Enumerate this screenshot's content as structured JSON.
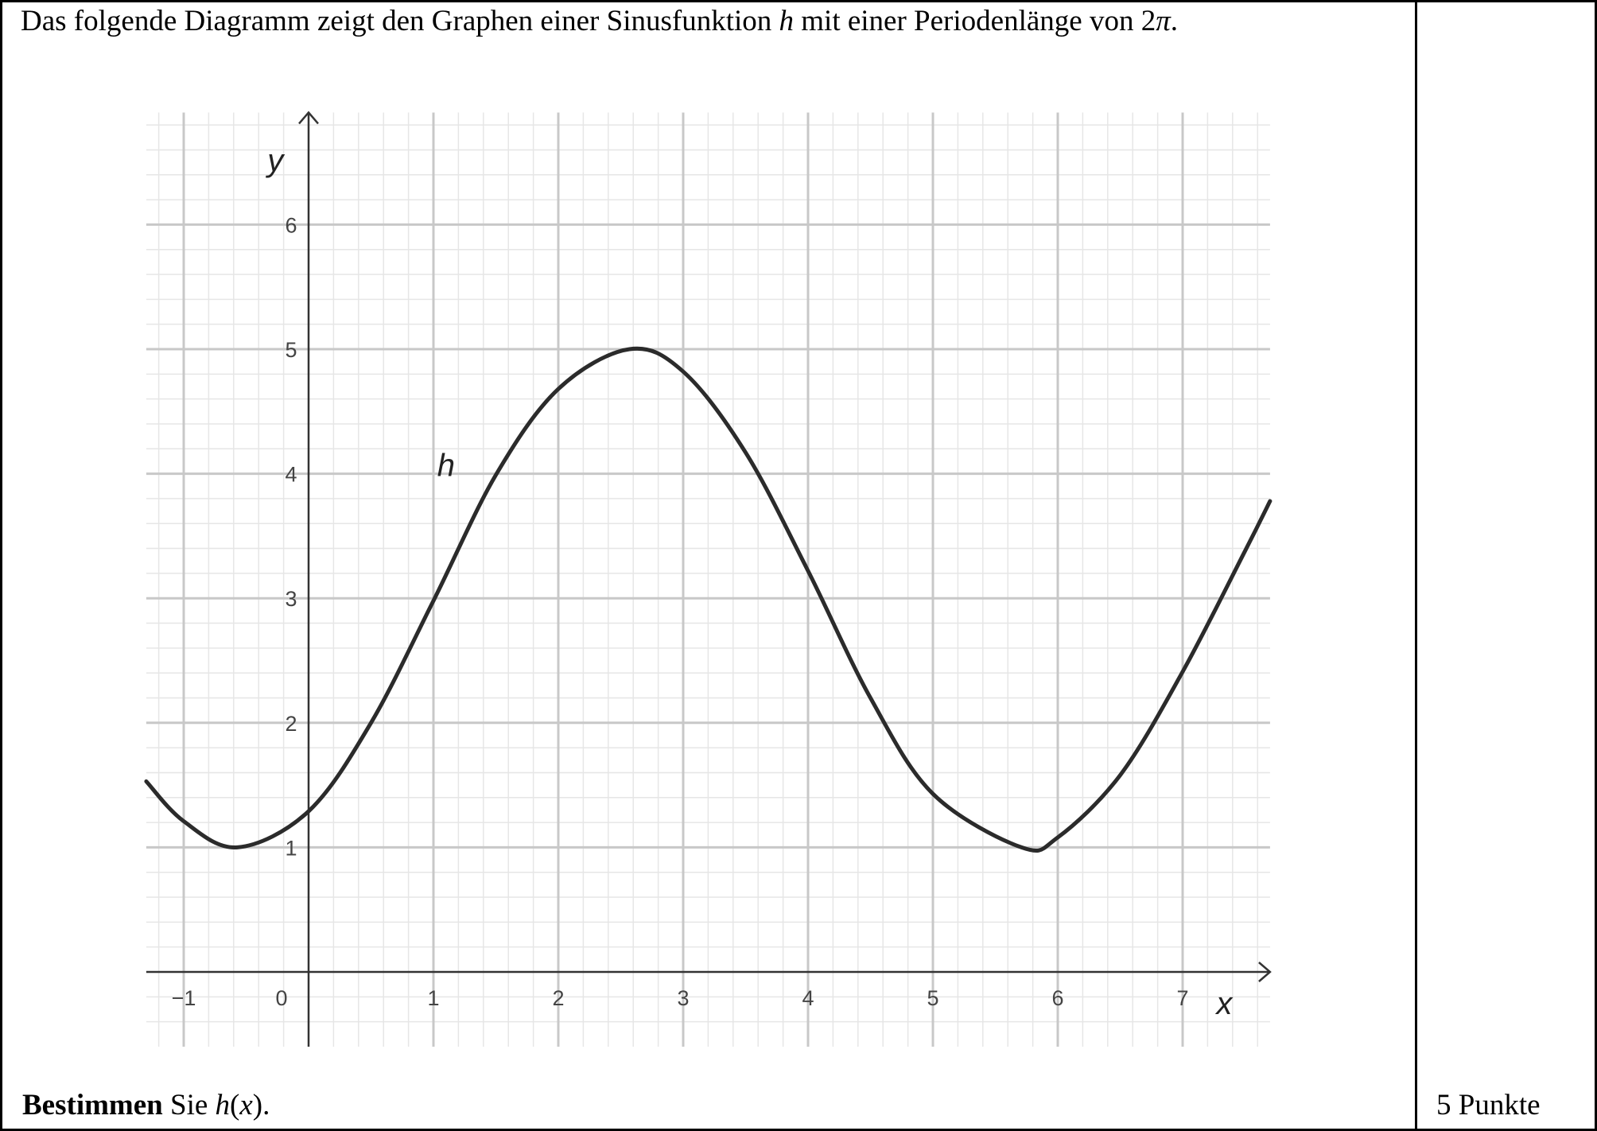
{
  "intro": {
    "part1": "Das folgende Diagramm zeigt den Graphen einer Sinusfunktion ",
    "fname": "h",
    "part2": " mit einer Periodenlänge von 2",
    "pi": "π",
    "part3": "."
  },
  "task": {
    "verb": "Bestimmen",
    "rest1": " Sie ",
    "expr_f": "h",
    "expr_paren_open": "(",
    "expr_x": "x",
    "expr_paren_close": ").",
    "points": "5 Punkte"
  },
  "chart_data": {
    "type": "line",
    "title": "",
    "xlabel": "x",
    "ylabel": "y",
    "xlim": [
      -1.3,
      7.7
    ],
    "ylim": [
      -0.6,
      6.9
    ],
    "grid": true,
    "minor_grid_step": 0.2,
    "x_ticks": [
      -1,
      0,
      1,
      2,
      3,
      4,
      5,
      6,
      7
    ],
    "x_tick_labels": [
      "−1",
      "0",
      "1",
      "2",
      "3",
      "4",
      "5",
      "6",
      "7"
    ],
    "y_ticks": [
      1,
      2,
      3,
      4,
      5,
      6
    ],
    "y_tick_labels": [
      "1",
      "2",
      "3",
      "4",
      "5",
      "6"
    ],
    "series": [
      {
        "name": "h",
        "x": [
          -1.3,
          -1.0,
          -0.57,
          0.0,
          0.5,
          1.0,
          1.5,
          2.0,
          2.57,
          3.0,
          3.5,
          4.0,
          4.5,
          5.0,
          5.71,
          6.0,
          6.5,
          7.0,
          7.5,
          7.7
        ],
        "y": [
          1.53,
          1.21,
          1.0,
          1.29,
          2.0,
          2.98,
          3.99,
          4.68,
          5.0,
          4.82,
          4.17,
          3.22,
          2.2,
          1.43,
          1.0,
          1.08,
          1.58,
          2.41,
          3.38,
          3.78
        ]
      }
    ],
    "colors": {
      "curve": "#2b2b2b",
      "major_grid": "#c8c8c8",
      "minor_grid": "#e6e6e6",
      "axis": "#333333"
    }
  }
}
